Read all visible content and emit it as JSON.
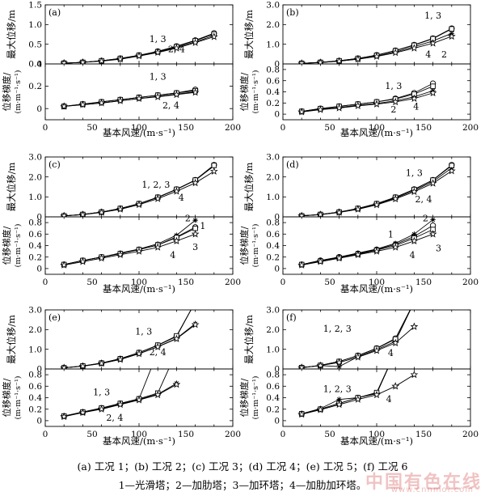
{
  "figure": {
    "x_label": "基本风速/(m·s⁻¹)",
    "y_labels": {
      "disp": [
        "最大位移/m"
      ],
      "grad": [
        "位移梯度/",
        "(m·m⁻¹·s⁻¹)"
      ]
    },
    "x_ticks": [
      0,
      20,
      40,
      60,
      80,
      100,
      120,
      140,
      160,
      180,
      200
    ],
    "x_tick_labels": [
      "0",
      "50",
      "100",
      "150",
      "200"
    ],
    "colors": {
      "line": "#000000"
    }
  },
  "chart_data": [
    {
      "type": "line",
      "panel": "(a)",
      "x": [
        20,
        40,
        60,
        80,
        100,
        120,
        140,
        160,
        180
      ],
      "disp": {
        "ylim": [
          0,
          1.5
        ],
        "yticks": [
          "0",
          "0.5",
          "1.0",
          "1.5"
        ],
        "series": [
          {
            "values": [
              0.02,
              0.04,
              0.08,
              0.14,
              0.22,
              0.32,
              0.45,
              0.6,
              0.78
            ]
          },
          {
            "values": [
              0.02,
              0.04,
              0.08,
              0.13,
              0.21,
              0.3,
              0.42,
              0.56,
              0.72
            ]
          },
          {
            "values": [
              0.02,
              0.04,
              0.08,
              0.14,
              0.22,
              0.31,
              0.44,
              0.59,
              0.76
            ]
          },
          {
            "values": [
              0.02,
              0.04,
              0.07,
              0.12,
              0.2,
              0.29,
              0.4,
              0.54,
              0.69
            ]
          }
        ],
        "annotations": [
          {
            "text": "1, 3",
            "x": 120,
            "y": 0.55
          },
          {
            "text": "2, 4",
            "x": 140,
            "y": 0.3
          }
        ]
      },
      "grad": {
        "ylim": [
          -0.1,
          0.4
        ],
        "yticks": [
          "0",
          "0.2",
          "0.4"
        ],
        "series": [
          {
            "values": [
              0.02,
              0.04,
              0.06,
              0.08,
              0.1,
              0.12,
              0.14,
              0.17
            ]
          },
          {
            "values": [
              0.02,
              0.035,
              0.05,
              0.07,
              0.09,
              0.11,
              0.13,
              0.15
            ]
          },
          {
            "values": [
              0.02,
              0.04,
              0.06,
              0.08,
              0.1,
              0.12,
              0.14,
              0.16
            ]
          },
          {
            "values": [
              0.02,
              0.035,
              0.05,
              0.07,
              0.09,
              0.105,
              0.125,
              0.145
            ]
          }
        ],
        "annotations": [
          {
            "text": "1, 3",
            "x": 120,
            "y": 0.26
          },
          {
            "text": "2, 4",
            "x": 134,
            "y": 0.0
          }
        ]
      }
    },
    {
      "type": "line",
      "panel": "(b)",
      "x": [
        20,
        40,
        60,
        80,
        100,
        120,
        140,
        160,
        180
      ],
      "disp": {
        "ylim": [
          0,
          3.0
        ],
        "yticks": [
          "0",
          "1.0",
          "2.0",
          "3.0"
        ],
        "series": [
          {
            "values": [
              0.03,
              0.08,
              0.16,
              0.28,
              0.45,
              0.68,
              0.97,
              1.3,
              1.8
            ]
          },
          {
            "values": [
              0.03,
              0.07,
              0.14,
              0.25,
              0.4,
              0.61,
              0.87,
              1.17,
              1.55
            ]
          },
          {
            "values": [
              0.03,
              0.08,
              0.16,
              0.28,
              0.44,
              0.67,
              0.95,
              1.28,
              1.78
            ]
          },
          {
            "values": [
              0.03,
              0.07,
              0.14,
              0.24,
              0.38,
              0.57,
              0.8,
              1.05,
              1.4
            ]
          }
        ],
        "annotations": [
          {
            "text": "1, 3",
            "x": 160,
            "y": 2.3
          },
          {
            "text": "2",
            "x": 172,
            "y": 0.32
          },
          {
            "text": "4",
            "x": 155,
            "y": 0.32
          }
        ]
      },
      "grad": {
        "ylim": [
          -0.1,
          0.9
        ],
        "yticks": [
          "0",
          "0.2",
          "0.4",
          "0.6",
          "0.8"
        ],
        "series": [
          {
            "values": [
              0.05,
              0.1,
              0.14,
              0.18,
              0.22,
              0.28,
              0.38,
              0.55
            ]
          },
          {
            "values": [
              0.04,
              0.09,
              0.12,
              0.16,
              0.19,
              0.24,
              0.31,
              0.42
            ]
          },
          {
            "values": [
              0.05,
              0.1,
              0.14,
              0.18,
              0.22,
              0.27,
              0.36,
              0.5
            ]
          },
          {
            "values": [
              0.04,
              0.08,
              0.11,
              0.15,
              0.18,
              0.22,
              0.28,
              0.38
            ]
          }
        ],
        "annotations": [
          {
            "text": "1, 3",
            "x": 118,
            "y": 0.45
          },
          {
            "text": "2",
            "x": 118,
            "y": 0.03
          },
          {
            "text": "4",
            "x": 142,
            "y": 0.08
          }
        ]
      }
    },
    {
      "type": "line",
      "panel": "(c)",
      "x": [
        20,
        40,
        60,
        80,
        100,
        120,
        140,
        160,
        180
      ],
      "disp": {
        "ylim": [
          0,
          3.0
        ],
        "yticks": [
          "0",
          "1.0",
          "2.0",
          "3.0"
        ],
        "series": [
          {
            "values": [
              0.05,
              0.12,
              0.24,
              0.42,
              0.66,
              0.98,
              1.38,
              1.85,
              2.6
            ]
          },
          {
            "values": [
              0.05,
              0.12,
              0.24,
              0.41,
              0.65,
              0.97,
              1.37,
              1.83,
              2.55
            ]
          },
          {
            "values": [
              0.05,
              0.12,
              0.24,
              0.42,
              0.66,
              0.98,
              1.38,
              1.84,
              2.58
            ]
          },
          {
            "values": [
              0.05,
              0.11,
              0.22,
              0.38,
              0.61,
              0.91,
              1.28,
              1.7,
              2.28
            ]
          }
        ],
        "annotations": [
          {
            "text": "1, 2, 3",
            "x": 118,
            "y": 1.45
          },
          {
            "text": "4",
            "x": 145,
            "y": 0.82
          }
        ]
      },
      "grad": {
        "ylim": [
          -0.1,
          0.9
        ],
        "yticks": [
          "0",
          "0.2",
          "0.4",
          "0.6",
          "0.8"
        ],
        "series": [
          {
            "values": [
              0.07,
              0.14,
              0.2,
              0.26,
              0.33,
              0.41,
              0.55,
              0.72
            ]
          },
          {
            "values": [
              0.07,
              0.14,
              0.2,
              0.27,
              0.34,
              0.43,
              0.58,
              0.84
            ]
          },
          {
            "values": [
              0.07,
              0.14,
              0.2,
              0.26,
              0.33,
              0.41,
              0.54,
              0.7
            ]
          },
          {
            "values": [
              0.06,
              0.12,
              0.18,
              0.24,
              0.3,
              0.37,
              0.48,
              0.6
            ]
          }
        ],
        "annotations": [
          {
            "text": "2",
            "x": 152,
            "y": 0.82
          },
          {
            "text": "1",
            "x": 168,
            "y": 0.69
          },
          {
            "text": "3",
            "x": 160,
            "y": 0.32
          },
          {
            "text": "4",
            "x": 136,
            "y": 0.18
          }
        ]
      }
    },
    {
      "type": "line",
      "panel": "(d)",
      "x": [
        20,
        40,
        60,
        80,
        100,
        120,
        140,
        160,
        180
      ],
      "disp": {
        "ylim": [
          0,
          3.0
        ],
        "yticks": [
          "0",
          "1.0",
          "2.0",
          "3.0"
        ],
        "series": [
          {
            "values": [
              0.05,
              0.12,
              0.24,
              0.42,
              0.66,
              0.98,
              1.38,
              1.85,
              2.6
            ]
          },
          {
            "values": [
              0.05,
              0.12,
              0.23,
              0.4,
              0.63,
              0.94,
              1.32,
              1.77,
              2.45
            ]
          },
          {
            "values": [
              0.05,
              0.12,
              0.24,
              0.42,
              0.66,
              0.98,
              1.37,
              1.84,
              2.57
            ]
          },
          {
            "values": [
              0.05,
              0.11,
              0.22,
              0.38,
              0.6,
              0.9,
              1.26,
              1.68,
              2.3
            ]
          }
        ],
        "annotations": [
          {
            "text": "1, 3",
            "x": 140,
            "y": 2.05
          },
          {
            "text": "2, 4",
            "x": 150,
            "y": 0.72
          }
        ]
      },
      "grad": {
        "ylim": [
          -0.1,
          0.9
        ],
        "yticks": [
          "0",
          "0.2",
          "0.4",
          "0.6",
          "0.8"
        ],
        "series": [
          {
            "values": [
              0.07,
              0.14,
              0.2,
              0.26,
              0.33,
              0.42,
              0.56,
              0.75
            ]
          },
          {
            "values": [
              0.07,
              0.14,
              0.2,
              0.27,
              0.34,
              0.44,
              0.6,
              0.85
            ]
          },
          {
            "values": [
              0.07,
              0.13,
              0.19,
              0.25,
              0.32,
              0.4,
              0.53,
              0.68
            ]
          },
          {
            "values": [
              0.06,
              0.12,
              0.18,
              0.24,
              0.3,
              0.37,
              0.48,
              0.6
            ]
          }
        ],
        "annotations": [
          {
            "text": "2",
            "x": 152,
            "y": 0.82
          },
          {
            "text": "1",
            "x": 115,
            "y": 0.54
          },
          {
            "text": "3",
            "x": 166,
            "y": 0.3
          },
          {
            "text": "4",
            "x": 138,
            "y": 0.18
          }
        ]
      }
    },
    {
      "type": "line",
      "panel": "(e)",
      "x": [
        20,
        40,
        60,
        80,
        100,
        120,
        140,
        160
      ],
      "disp": {
        "ylim": [
          0,
          3.0
        ],
        "yticks": [
          "0",
          "1.0",
          "2.0",
          "3.0"
        ],
        "series": [
          {
            "values": [
              0.06,
              0.15,
              0.3,
              0.52,
              0.83,
              1.2,
              1.65,
              3.4
            ]
          },
          {
            "values": [
              0.06,
              0.14,
              0.28,
              0.49,
              0.78,
              1.13,
              1.55,
              2.3
            ]
          },
          {
            "values": [
              0.06,
              0.15,
              0.3,
              0.52,
              0.83,
              1.21,
              1.68,
              3.4
            ]
          },
          {
            "values": [
              0.06,
              0.14,
              0.28,
              0.48,
              0.77,
              1.12,
              1.53,
              2.25
            ]
          }
        ],
        "annotations": [
          {
            "text": "1, 3",
            "x": 105,
            "y": 1.75
          },
          {
            "text": "2, 4",
            "x": 120,
            "y": 0.7
          }
        ]
      },
      "grad": {
        "ylim": [
          -0.1,
          0.9
        ],
        "yticks": [
          "0",
          "0.2",
          "0.4",
          "0.6",
          "0.8"
        ],
        "series": [
          {
            "values": [
              0.08,
              0.15,
              0.22,
              0.3,
              0.38,
              1.2
            ]
          },
          {
            "values": [
              0.08,
              0.14,
              0.21,
              0.29,
              0.37,
              0.46,
              0.65
            ]
          },
          {
            "values": [
              0.08,
              0.15,
              0.22,
              0.3,
              0.38,
              0.48,
              1.2
            ]
          },
          {
            "values": [
              0.07,
              0.14,
              0.2,
              0.28,
              0.36,
              0.45,
              0.63
            ]
          }
        ],
        "annotations": [
          {
            "text": "1, 3",
            "x": 60,
            "y": 0.44
          },
          {
            "text": "2, 4",
            "x": 74,
            "y": 0.0
          }
        ]
      }
    },
    {
      "type": "line",
      "panel": "(f)",
      "x": [
        20,
        40,
        60,
        80,
        100,
        120,
        140
      ],
      "disp": {
        "ylim": [
          0,
          3.0
        ],
        "yticks": [
          "0",
          "1.0",
          "2.0",
          "3.0"
        ],
        "series": [
          {
            "values": [
              0.07,
              0.18,
              0.38,
              0.68,
              1.05,
              1.55,
              3.4
            ]
          },
          {
            "values": [
              0.07,
              0.17,
              0.12,
              0.62,
              0.98,
              1.4,
              3.4
            ]
          },
          {
            "values": [
              0.07,
              0.18,
              0.38,
              0.67,
              1.04,
              1.52,
              3.4
            ]
          },
          {
            "values": [
              0.07,
              0.17,
              0.33,
              0.6,
              0.93,
              1.32,
              2.15
            ]
          }
        ],
        "annotations": [
          {
            "text": "1, 2, 3",
            "x": 58,
            "y": 1.9
          },
          {
            "text": "4",
            "x": 115,
            "y": 0.65
          }
        ]
      },
      "grad": {
        "ylim": [
          -0.1,
          0.9
        ],
        "yticks": [
          "0",
          "0.2",
          "0.4",
          "0.6",
          "0.8"
        ],
        "series": [
          {
            "values": [
              0.12,
              0.2,
              0.3,
              0.4,
              0.48,
              1.2
            ]
          },
          {
            "values": [
              0.12,
              0.21,
              0.37,
              0.4,
              0.47,
              1.2
            ]
          },
          {
            "values": [
              0.12,
              0.2,
              0.3,
              0.4,
              0.49,
              1.2
            ]
          },
          {
            "values": [
              0.11,
              0.19,
              0.28,
              0.37,
              0.45,
              0.6,
              0.8
            ]
          }
        ],
        "annotations": [
          {
            "text": "1, 2, 3",
            "x": 58,
            "y": 0.5
          },
          {
            "text": "4",
            "x": 113,
            "y": 0.32
          }
        ]
      }
    }
  ],
  "caption": {
    "line1": "(a)  工况 1；(b)  工况 2；(c)  工况 3；(d)  工况 4；(e)  工况 5；(f)  工况 6",
    "line2": "1—光滑塔；2—加肋塔；3—加环塔；4—加肋加环塔。"
  },
  "watermark": {
    "main": "中国有色在线",
    "sub": "www.cnnmol.com"
  }
}
